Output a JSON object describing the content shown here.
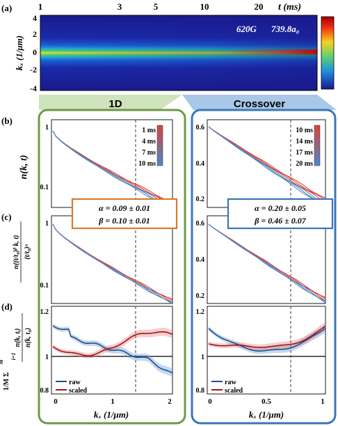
{
  "panel_labels": {
    "a": "(a)",
    "b": "(b)",
    "c": "(c)",
    "d": "(d)"
  },
  "top": {
    "time_axis_label": "t (ms)",
    "time_ticks": [
      "1",
      "3",
      "5",
      "10",
      "20"
    ],
    "y_label": "kₓ (1/μm)",
    "y_ticks": [
      "4",
      "2",
      "0",
      "-2",
      "-4"
    ],
    "field": "620G",
    "scattering_length": "739.8a₀"
  },
  "groups": {
    "left": "1D",
    "right": "Crossover"
  },
  "row_labels": {
    "b": "n(k, t)",
    "c_numerator": "n((t/t₀)ᵝ k, t)",
    "c_denominator": "(t/t₀)ᵅ",
    "d_prefix": "1/M Σ",
    "d_sum_top": "M",
    "d_sum_bottom": "i=1",
    "d_frac_top": "n(k, tᵢ)",
    "d_frac_bottom": "n(k, t₀)"
  },
  "fit_boxes": {
    "left": {
      "alpha": "α = 0.09 ± 0.01",
      "beta": "β = 0.10 ± 0.01"
    },
    "right": {
      "alpha": "α = 0.20 ± 0.05",
      "beta": "β = 0.46 ± 0.07"
    }
  },
  "legends": {
    "left_times": [
      "1  ms",
      "4  ms",
      "7  ms",
      "10  ms"
    ],
    "right_times": [
      "10  ms",
      "14  ms",
      "17  ms",
      "20  ms"
    ],
    "raw": "raw",
    "scaled": "scaled"
  },
  "left_axes": {
    "x_ticks": [
      "0",
      "1",
      "2"
    ],
    "y_ticks_b": [
      "1",
      "0.1"
    ],
    "y_ticks_c": [
      "1",
      "0.1"
    ],
    "y_ticks_d": [
      "1.2",
      "1",
      "0.8"
    ],
    "x_label": "kₓ (1/μm)"
  },
  "right_axes": {
    "x_ticks": [
      "0",
      "0.5",
      "1"
    ],
    "y_ticks_b": [
      "0.6",
      "0.4",
      "0.2"
    ],
    "y_ticks_c": [
      "0.6",
      "0.4",
      "0.2"
    ],
    "y_ticks_d": [
      "1.2",
      "1",
      "0.8"
    ],
    "x_label": "kₓ (1/μm)"
  },
  "colors": {
    "red": "#d9443a",
    "blue": "#4c87c6",
    "green_frame": "#6e9a45",
    "blue_frame": "#3a76b8",
    "orange_box": "#d87a2e",
    "raw_line": "#1f4e8c",
    "scaled_line": "#a01616"
  }
}
